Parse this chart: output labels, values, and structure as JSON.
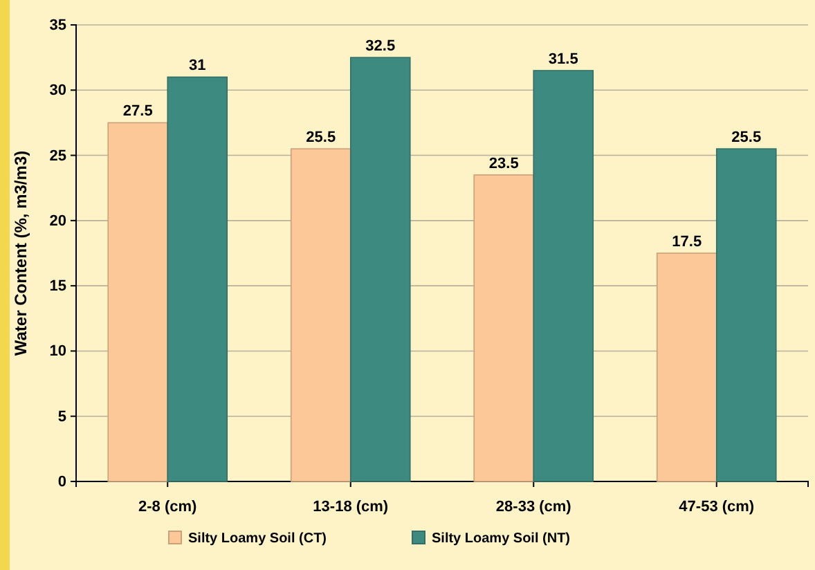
{
  "chart_data": {
    "type": "bar",
    "ylabel": "Water Content (%, m3/m3)",
    "categories": [
      "2-8 (cm)",
      "13-18 (cm)",
      "28-33 (cm)",
      "47-53 (cm)"
    ],
    "series": [
      {
        "name": "Silty Loamy Soil (CT)",
        "color": "#fcc898",
        "values": [
          27.5,
          25.5,
          23.5,
          17.5
        ]
      },
      {
        "name": "Silty Loamy Soil (NT)",
        "color": "#3d8a80",
        "values": [
          31,
          32.5,
          31.5,
          25.5
        ]
      }
    ],
    "ylim": [
      0,
      35
    ],
    "yticks": [
      0,
      5,
      10,
      15,
      20,
      25,
      30,
      35
    ],
    "grid": "y",
    "legend": "bottom",
    "data_labels": true
  }
}
